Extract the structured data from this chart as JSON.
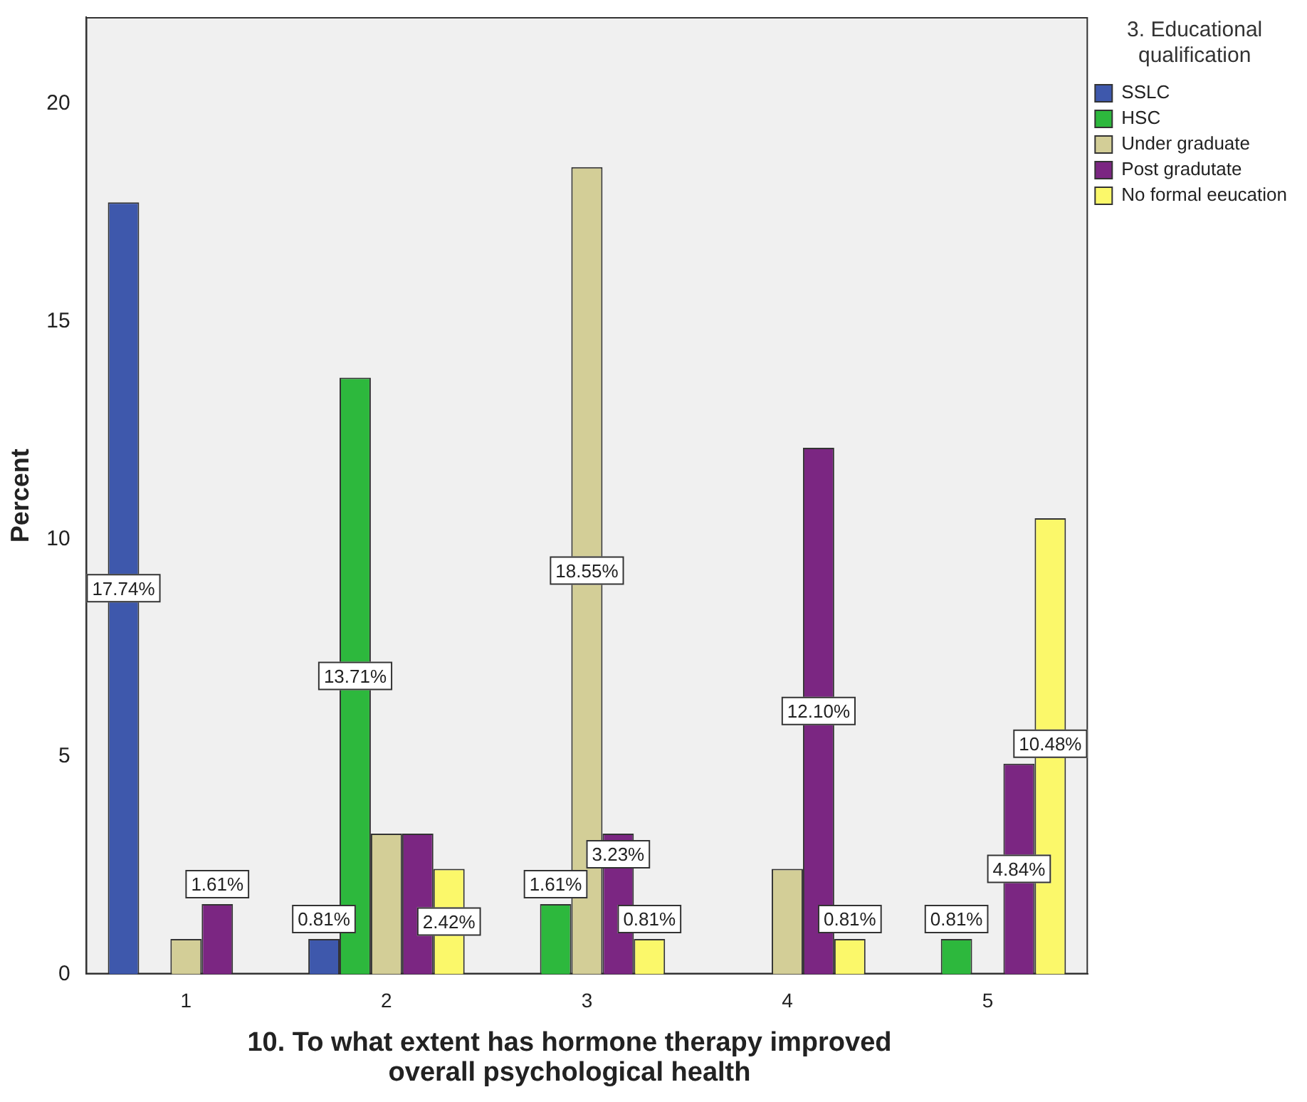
{
  "chart_data": {
    "type": "bar",
    "xlabel": "10. To what extent has hormone therapy improved overall psychological health",
    "ylabel": "Percent",
    "legend_title": "3. Educational qualification",
    "categories": [
      "1",
      "2",
      "3",
      "4",
      "5"
    ],
    "series": [
      {
        "name": "SSLC",
        "color": "#3e58ac",
        "values": [
          17.74,
          0.81,
          0,
          0,
          0
        ],
        "value_labels": [
          "17.74%",
          "0.81%",
          null,
          null,
          null
        ]
      },
      {
        "name": "HSC",
        "color": "#2db83d",
        "values": [
          0,
          13.71,
          1.61,
          0,
          0.81
        ],
        "value_labels": [
          null,
          "13.71%",
          "1.61%",
          null,
          "0.81%"
        ]
      },
      {
        "name": "Under graduate",
        "color": "#d3ce97",
        "values": [
          0.81,
          3.23,
          18.55,
          2.42,
          0
        ],
        "value_labels": [
          null,
          null,
          "18.55%",
          null,
          null
        ]
      },
      {
        "name": "Post gradutate",
        "color": "#7b2682",
        "values": [
          1.61,
          3.23,
          3.23,
          12.1,
          4.84
        ],
        "value_labels": [
          "1.61%",
          null,
          "3.23%",
          "12.10%",
          "4.84%"
        ]
      },
      {
        "name": "No formal eeucation",
        "color": "#fbf86a",
        "values": [
          0,
          2.42,
          0.81,
          0.81,
          10.48
        ],
        "value_labels": [
          null,
          "2.42%",
          "0.81%",
          "0.81%",
          "10.48%"
        ]
      }
    ],
    "ylim": [
      0,
      22
    ],
    "yticks": [
      0,
      5,
      10,
      15,
      20
    ],
    "grid": false,
    "legend": "top right"
  }
}
